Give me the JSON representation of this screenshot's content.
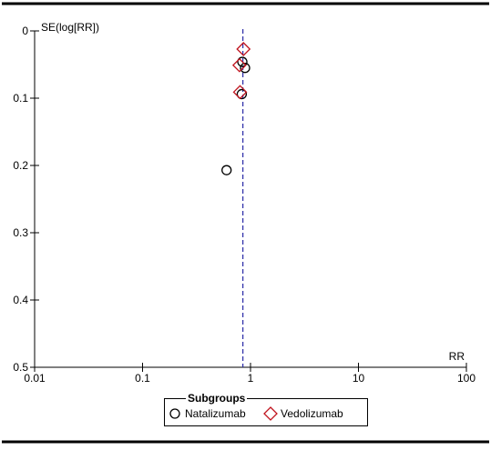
{
  "chart_data": {
    "type": "scatter",
    "title": "",
    "xlabel": "RR",
    "ylabel": "SE(log[RR])",
    "x_scale": "log",
    "xlim": [
      0.01,
      100
    ],
    "ylim": [
      0,
      0.5
    ],
    "y_inverted": true,
    "x_ticks": [
      "0.01",
      "0.1",
      "1",
      "10",
      "100"
    ],
    "y_ticks": [
      "0",
      "0.1",
      "0.2",
      "0.3",
      "0.4",
      "0.5"
    ],
    "reference_line": {
      "x": 0.85,
      "style": "dashed",
      "color": "#2a2aa8"
    },
    "legend": {
      "title": "Subgroups",
      "placement": "bottom-center",
      "entries": [
        "Natalizumab",
        "Vedolizumab"
      ]
    },
    "series": [
      {
        "name": "Natalizumab",
        "marker": "circle",
        "color": "#000000",
        "points": [
          {
            "x": 0.84,
            "y": 0.046
          },
          {
            "x": 0.89,
            "y": 0.055
          },
          {
            "x": 0.83,
            "y": 0.094
          },
          {
            "x": 0.6,
            "y": 0.207
          }
        ]
      },
      {
        "name": "Vedolizumab",
        "marker": "diamond",
        "color": "#c0141e",
        "points": [
          {
            "x": 0.86,
            "y": 0.027
          },
          {
            "x": 0.79,
            "y": 0.051
          },
          {
            "x": 0.8,
            "y": 0.091
          }
        ]
      }
    ]
  }
}
